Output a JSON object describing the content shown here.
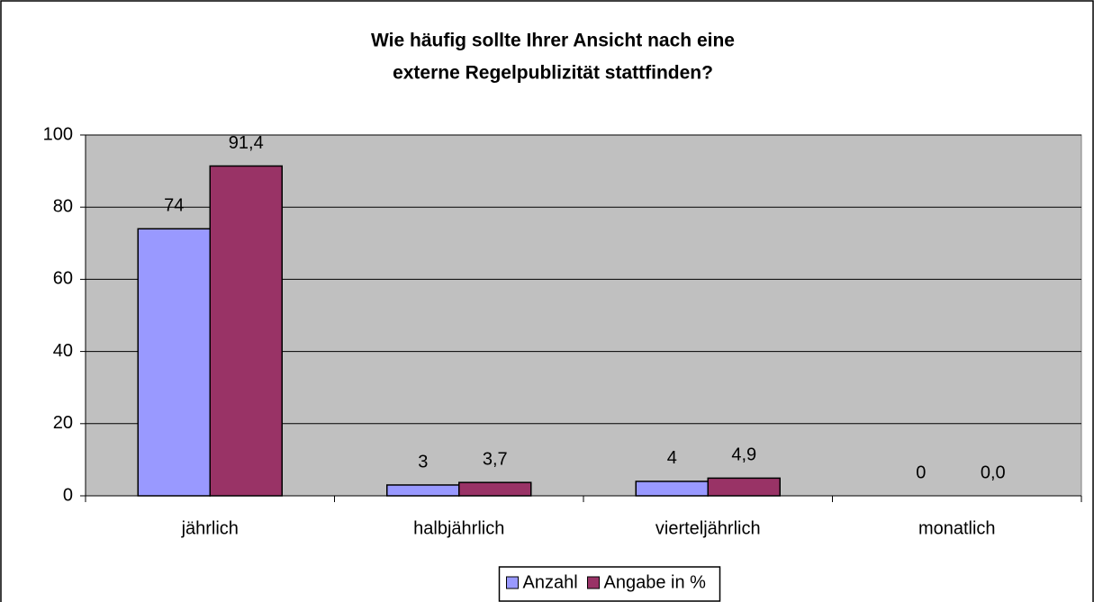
{
  "chart_data": {
    "type": "bar",
    "title": [
      "Wie häufig sollte Ihrer Ansicht nach eine",
      "externe Regelpublizität stattfinden?"
    ],
    "categories": [
      "jährlich",
      "halbjährlich",
      "vierteljährlich",
      "monatlich"
    ],
    "series": [
      {
        "name": "Anzahl",
        "color": "#9999ff",
        "values": [
          74,
          3,
          4,
          0
        ]
      },
      {
        "name": "Angabe in %",
        "color": "#993366",
        "values": [
          91.4,
          3.7,
          4.9,
          0.0
        ],
        "value_labels": [
          "91,4",
          "3,7",
          "4,9",
          "0,0"
        ]
      }
    ],
    "ylim": [
      0,
      100
    ],
    "yticks": [
      0,
      20,
      40,
      60,
      80,
      100
    ],
    "grid": true,
    "legend": "bottom"
  }
}
